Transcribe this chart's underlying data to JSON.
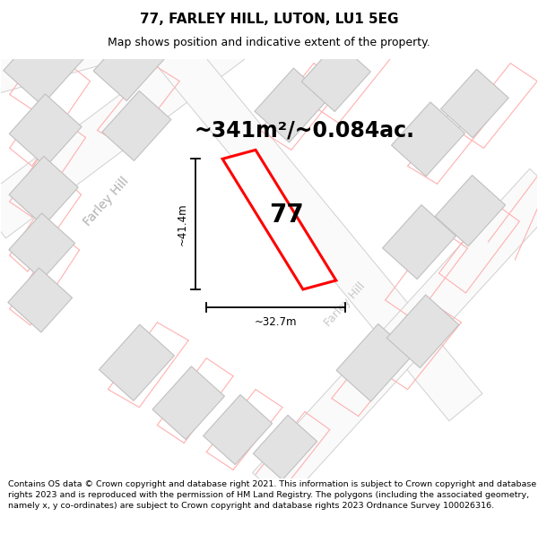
{
  "title": "77, FARLEY HILL, LUTON, LU1 5EG",
  "subtitle": "Map shows position and indicative extent of the property.",
  "area_text": "~341m²/~0.084ac.",
  "label_77": "77",
  "dim_width": "~32.7m",
  "dim_height": "~41.4m",
  "road_label1": "Farley Hill",
  "road_label2": "Farley Hill",
  "footer": "Contains OS data © Crown copyright and database right 2021. This information is subject to Crown copyright and database rights 2023 and is reproduced with the permission of HM Land Registry. The polygons (including the associated geometry, namely x, y co-ordinates) are subject to Crown copyright and database rights 2023 Ordnance Survey 100026316.",
  "bg_color": "#f2f2f2",
  "highlight_color": "#ff0000",
  "pink_line_color": "#ffb0b0",
  "building_fc": "#e2e2e2",
  "building_ec": "#c0c0c0",
  "road_fc": "#fafafa",
  "road_ec": "#d0d0d0",
  "title_fontsize": 11,
  "subtitle_fontsize": 9,
  "area_fontsize": 17,
  "label_fontsize": 20,
  "road_label_fontsize": 10,
  "footer_fontsize": 6.8
}
